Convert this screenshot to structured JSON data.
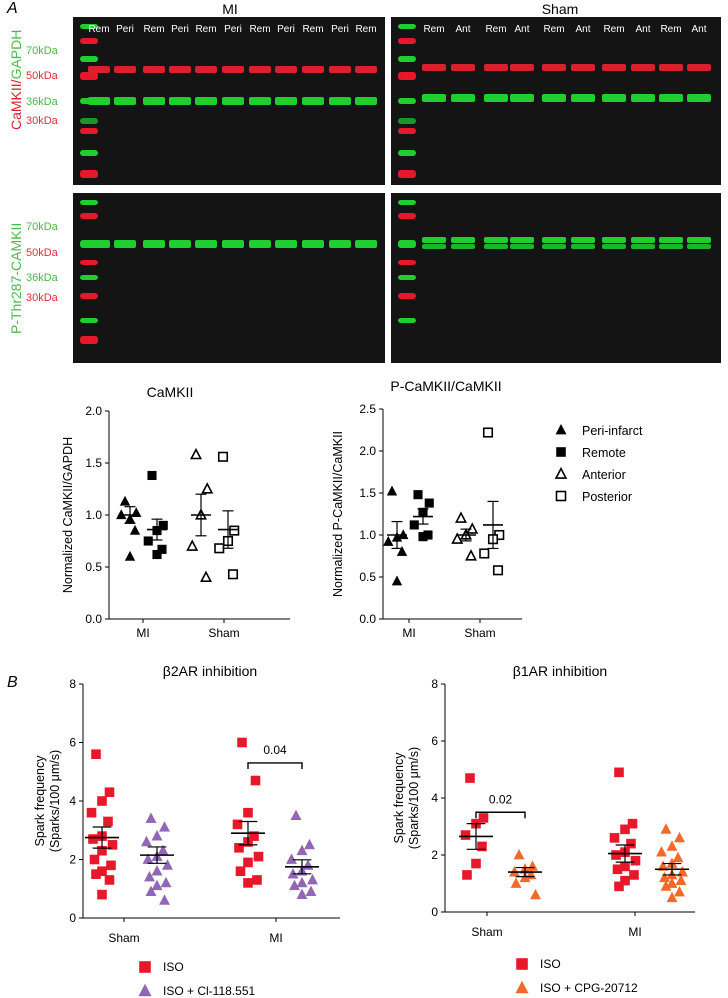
{
  "colors": {
    "marker_red": "#e8182a",
    "band_red": "#d9202c",
    "band_green": "#1fcf2f",
    "purple": "#9166b6",
    "orange": "#f26a2a",
    "ladder_green_label": "#4db84d",
    "ladder_red_label": "#e0303a",
    "blot_background": "#141414"
  },
  "panel_a": {
    "letter": "A",
    "blot_headers": {
      "mi": "MI",
      "sham": "Sham"
    },
    "lane_labels": {
      "mi": [
        "Rem",
        "Peri",
        "Rem",
        "Peri",
        "Rem",
        "Peri",
        "Rem",
        "Peri",
        "Rem",
        "Peri",
        "Rem"
      ],
      "sham": [
        "Rem",
        "Ant",
        "Rem",
        "Ant",
        "Rem",
        "Ant",
        "Rem",
        "Ant",
        "Rem",
        "Ant"
      ]
    },
    "top_blot": {
      "side_label_red": "CaMKII",
      "side_label_sep": "/",
      "side_label_green": "GAPDH",
      "ladder": [
        {
          "label": "70kDa",
          "color": "green"
        },
        {
          "label": "50kDa",
          "color": "red"
        },
        {
          "label": "36kDa",
          "color": "green"
        },
        {
          "label": "30kDa",
          "color": "red"
        }
      ]
    },
    "bottom_blot": {
      "side_label": "P-Thr287-CAMKII",
      "ladder": [
        {
          "label": "70kDa",
          "color": "green"
        },
        {
          "label": "50kDa",
          "color": "red"
        },
        {
          "label": "36kDa",
          "color": "green"
        },
        {
          "label": "30kDa",
          "color": "red"
        }
      ]
    },
    "legend": [
      "Peri-infarct",
      "Remote",
      "Anterior",
      "Posterior"
    ]
  },
  "panel_b": {
    "letter": "B"
  },
  "chart_data": [
    {
      "id": "camkii",
      "type": "scatter",
      "title": "CaMKII",
      "xlabel": "",
      "ylabel": "Normalized CaMKII/GAPDH",
      "ylim": [
        0,
        2
      ],
      "yticks": [
        "0.0",
        "0.5",
        "1.0",
        "1.5",
        "2.0"
      ],
      "categories": [
        "MI",
        "Sham"
      ],
      "series": [
        {
          "name": "Peri-infarct",
          "group": "MI",
          "marker": "triangle-filled",
          "color": "#000000",
          "values": [
            1.13,
            1.02,
            0.96,
            1.0,
            0.85,
            0.6
          ],
          "mean": 1.0,
          "sem": 0.08
        },
        {
          "name": "Remote",
          "group": "MI",
          "marker": "square-filled",
          "color": "#000000",
          "values": [
            1.38,
            0.9,
            0.85,
            0.75,
            0.67,
            0.62
          ],
          "mean": 0.86,
          "sem": 0.1
        },
        {
          "name": "Anterior",
          "group": "Sham",
          "marker": "triangle-open",
          "color": "#000000",
          "values": [
            1.58,
            1.25,
            1.0,
            0.7,
            0.4
          ],
          "mean": 1.0,
          "sem": 0.2
        },
        {
          "name": "Posterior",
          "group": "Sham",
          "marker": "square-open",
          "color": "#000000",
          "values": [
            1.56,
            0.85,
            0.75,
            0.68,
            0.43
          ],
          "mean": 0.86,
          "sem": 0.18
        }
      ]
    },
    {
      "id": "p_camkii",
      "type": "scatter",
      "title": "P-CaMKII/CaMKII",
      "xlabel": "",
      "ylabel": "Normalized P-CaMKII/CaMKII",
      "ylim": [
        0,
        2.5
      ],
      "yticks": [
        "0.0",
        "0.5",
        "1.0",
        "1.5",
        "2.0",
        "2.5"
      ],
      "categories": [
        "MI",
        "Sham"
      ],
      "series": [
        {
          "name": "Peri-infarct",
          "group": "MI",
          "marker": "triangle-filled",
          "color": "#000000",
          "values": [
            1.52,
            1.0,
            0.97,
            0.92,
            0.8,
            0.45
          ],
          "mean": 1.0,
          "sem": 0.16
        },
        {
          "name": "Remote",
          "group": "MI",
          "marker": "square-filled",
          "color": "#000000",
          "values": [
            1.48,
            1.38,
            1.27,
            1.12,
            1.0,
            0.98
          ],
          "mean": 1.22,
          "sem": 0.09
        },
        {
          "name": "Anterior",
          "group": "Sham",
          "marker": "triangle-open",
          "color": "#000000",
          "values": [
            1.2,
            1.07,
            1.0,
            0.95,
            0.75
          ],
          "mean": 1.0,
          "sem": 0.07
        },
        {
          "name": "Posterior",
          "group": "Sham",
          "marker": "square-open",
          "color": "#000000",
          "values": [
            2.22,
            1.0,
            0.95,
            0.78,
            0.58
          ],
          "mean": 1.12,
          "sem": 0.28
        }
      ]
    },
    {
      "id": "b2ar",
      "type": "scatter",
      "title": "β2AR inhibition",
      "xlabel": "",
      "ylabel": [
        "Spark frequency",
        "(Sparks/100 μm/s)"
      ],
      "ylim": [
        0,
        8
      ],
      "yticks": [
        "0",
        "2",
        "4",
        "6",
        "8"
      ],
      "categories": [
        "Sham",
        "MI"
      ],
      "legend": [
        "ISO",
        "ISO + Cl-118.551"
      ],
      "significance": [
        {
          "category": "MI",
          "label": "0.04"
        }
      ],
      "series": [
        {
          "name": "ISO",
          "group": "Sham",
          "marker": "square-filled",
          "color": "#e8182a",
          "values": [
            5.6,
            4.3,
            4.0,
            3.6,
            3.3,
            2.8,
            2.7,
            2.5,
            2.3,
            2.0,
            1.8,
            1.6,
            1.5,
            1.3,
            0.8
          ],
          "mean": 2.75,
          "sem": 0.36
        },
        {
          "name": "ISO + Cl-118.551",
          "group": "Sham",
          "marker": "triangle-filled",
          "color": "#9166b6",
          "values": [
            3.4,
            3.1,
            2.8,
            2.6,
            2.3,
            2.1,
            2.0,
            1.8,
            1.6,
            1.4,
            1.2,
            1.1,
            0.9,
            0.6
          ],
          "mean": 2.15,
          "sem": 0.28
        },
        {
          "name": "ISO",
          "group": "MI",
          "marker": "square-filled",
          "color": "#e8182a",
          "values": [
            6.0,
            4.7,
            3.6,
            3.2,
            2.8,
            2.6,
            2.4,
            2.1,
            1.9,
            1.6,
            1.3,
            1.2
          ],
          "mean": 2.9,
          "sem": 0.4
        },
        {
          "name": "ISO + Cl-118.551",
          "group": "MI",
          "marker": "triangle-filled",
          "color": "#9166b6",
          "values": [
            3.5,
            2.5,
            2.3,
            2.0,
            1.8,
            1.6,
            1.5,
            1.3,
            1.2,
            1.1,
            0.9,
            0.8
          ],
          "mean": 1.75,
          "sem": 0.24
        }
      ]
    },
    {
      "id": "b1ar",
      "type": "scatter",
      "title": "β1AR inhibition",
      "xlabel": "",
      "ylabel": [
        "Spark frequency",
        "(Sparks/100 μm/s)"
      ],
      "ylim": [
        0,
        8
      ],
      "yticks": [
        "0",
        "2",
        "4",
        "6",
        "8"
      ],
      "categories": [
        "Sham",
        "MI"
      ],
      "legend": [
        "ISO",
        "ISO + CPG-20712"
      ],
      "significance": [
        {
          "category": "Sham",
          "label": "0.02"
        }
      ],
      "series": [
        {
          "name": "ISO",
          "group": "Sham",
          "marker": "square-filled",
          "color": "#e8182a",
          "values": [
            4.7,
            3.3,
            3.1,
            2.7,
            2.3,
            1.7,
            1.3
          ],
          "mean": 2.65,
          "sem": 0.45
        },
        {
          "name": "ISO + CPG-20712",
          "group": "Sham",
          "marker": "triangle-filled",
          "color": "#f26a2a",
          "values": [
            2.0,
            1.6,
            1.5,
            1.4,
            1.3,
            1.2,
            1.0,
            0.6
          ],
          "mean": 1.4,
          "sem": 0.16
        },
        {
          "name": "ISO",
          "group": "MI",
          "marker": "square-filled",
          "color": "#e8182a",
          "values": [
            4.9,
            3.1,
            2.9,
            2.6,
            2.4,
            2.1,
            2.0,
            1.8,
            1.6,
            1.5,
            1.3,
            1.1,
            0.9
          ],
          "mean": 2.05,
          "sem": 0.3
        },
        {
          "name": "ISO + CPG-20712",
          "group": "MI",
          "marker": "triangle-filled",
          "color": "#f26a2a",
          "values": [
            2.9,
            2.6,
            2.3,
            2.1,
            1.9,
            1.7,
            1.6,
            1.4,
            1.3,
            1.2,
            1.1,
            1.0,
            0.9,
            0.7,
            0.5
          ],
          "mean": 1.5,
          "sem": 0.2
        }
      ]
    }
  ]
}
